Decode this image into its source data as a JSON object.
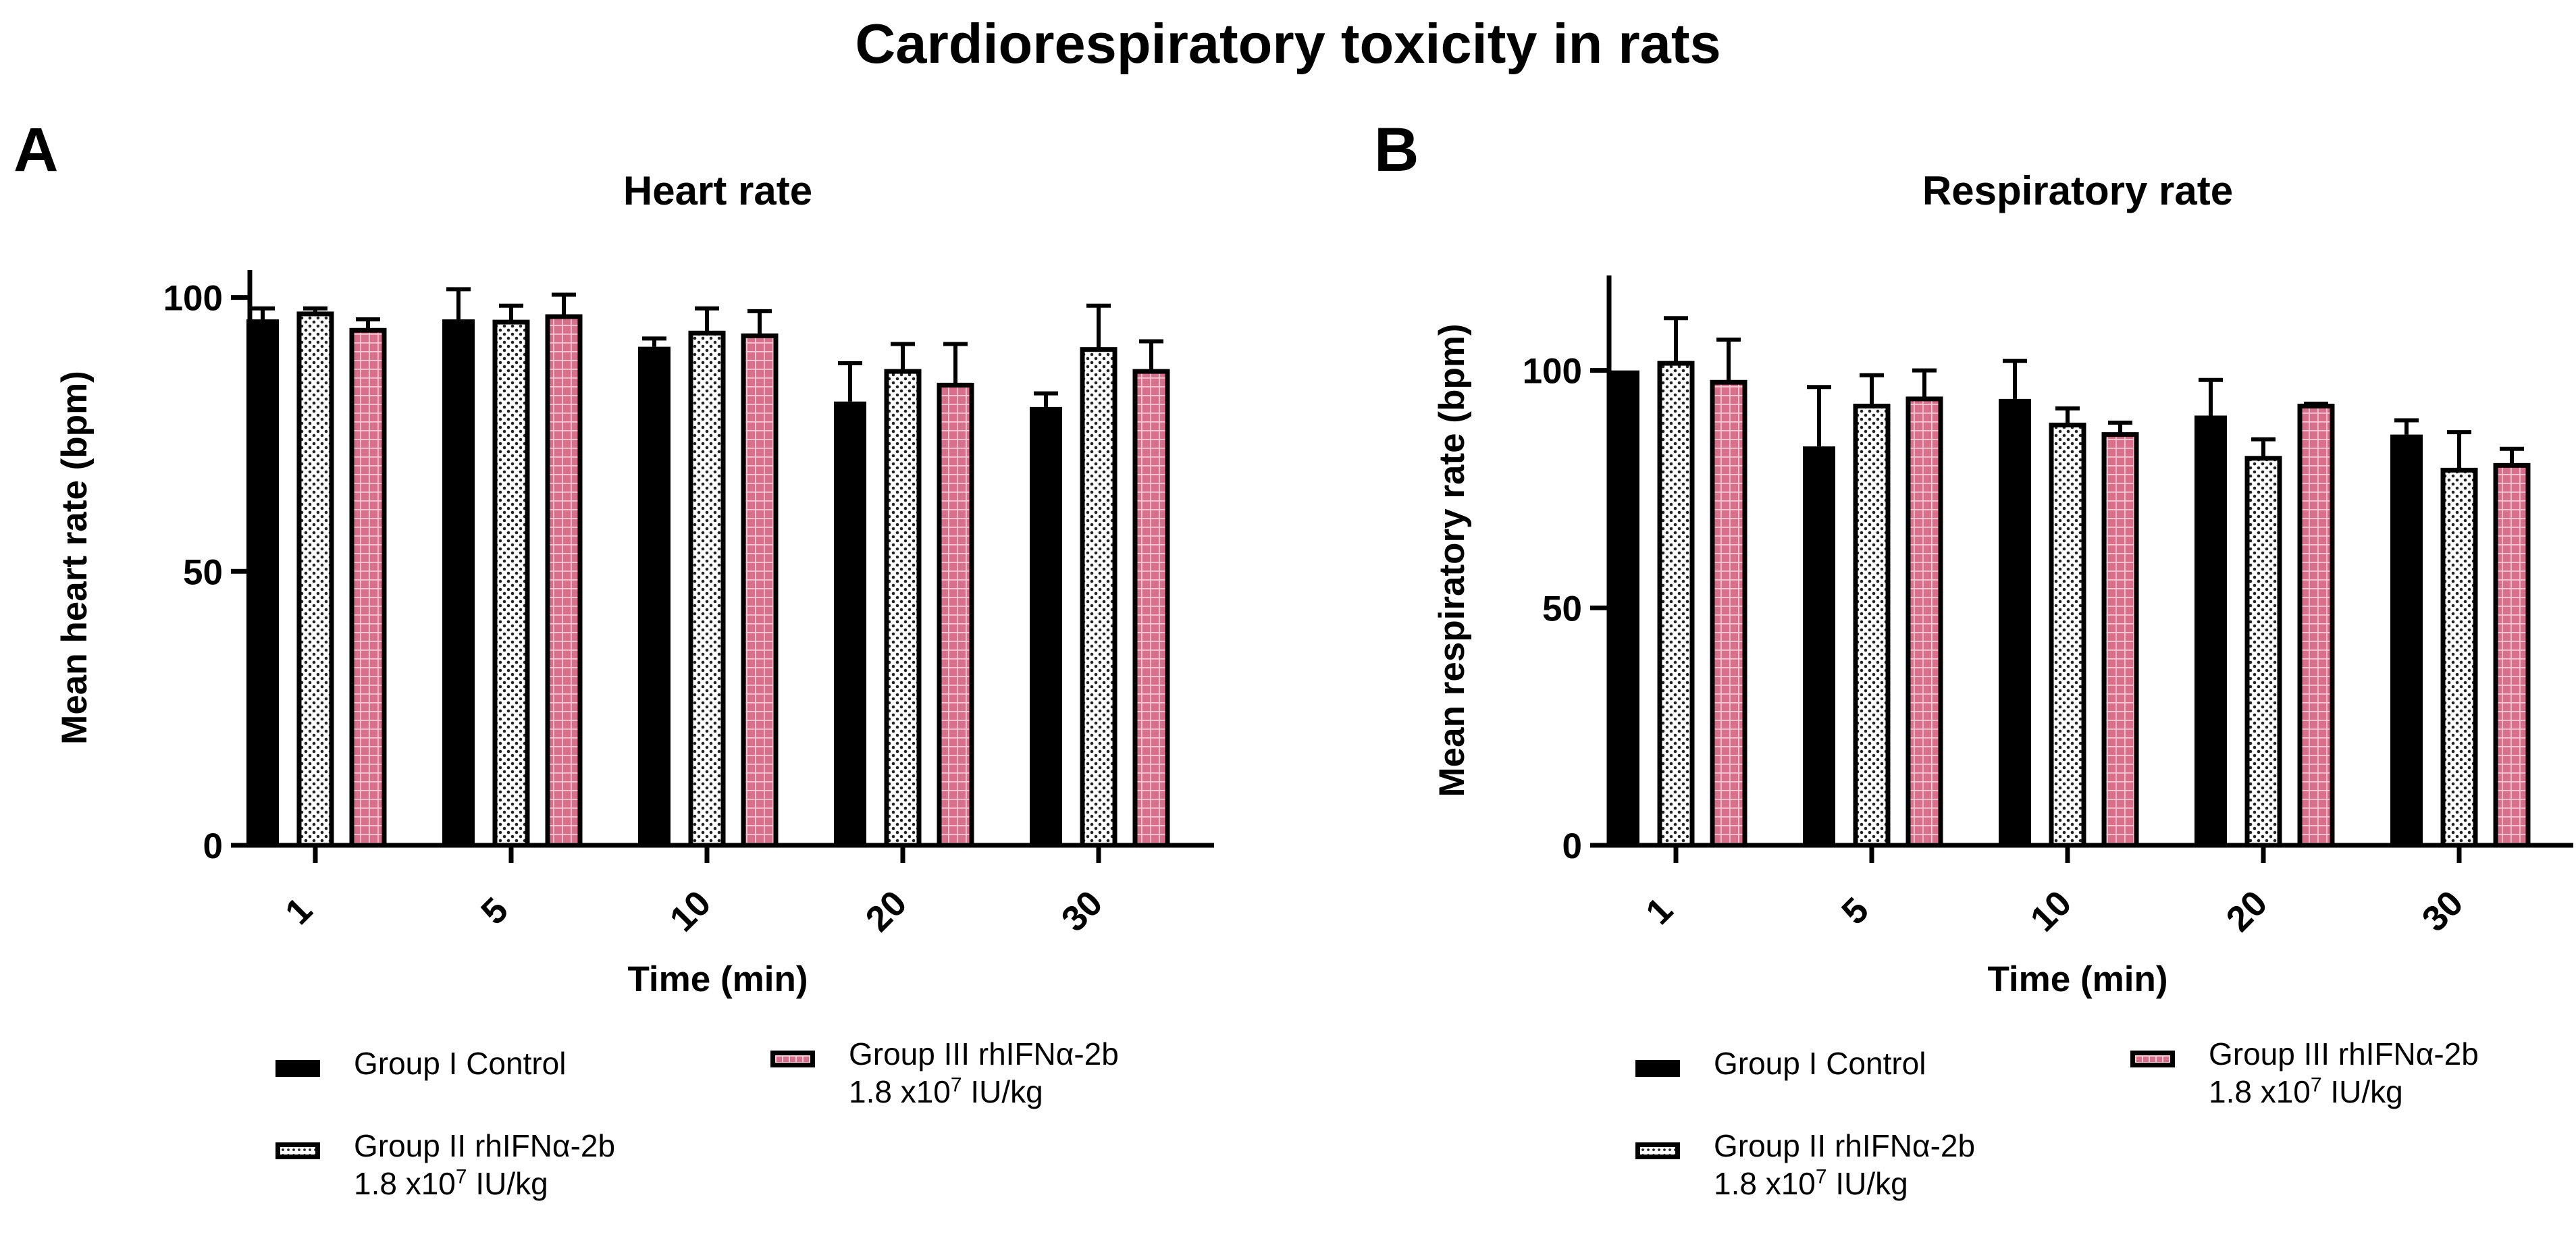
{
  "figure_title": "Cardiorespiratory toxicity in rats",
  "legend_items": [
    {
      "name": "Group I Control",
      "label": "Group I Control",
      "dose_prefix": "",
      "dose_exp": "",
      "dose_suffix": "",
      "fill": "#000000"
    },
    {
      "name": "Group II rhIFNα-2b",
      "label": "Group II rhIFNα-2b",
      "dose_prefix": "1.8 x10",
      "dose_exp": "7",
      "dose_suffix": " IU/kg",
      "fill": "#ffffff"
    },
    {
      "name": "Group III rhIFNα-2b",
      "label": "Group III rhIFNα-2b",
      "dose_prefix": "1.8 x10",
      "dose_exp": "7",
      "dose_suffix": " IU/kg",
      "fill": "#d8708c"
    }
  ],
  "chart_data": [
    {
      "panel": "A",
      "type": "bar",
      "title": "Heart  rate",
      "xlabel": "Time (min)",
      "ylabel": "Mean heart rate  (bpm)",
      "categories": [
        "1",
        "5",
        "10",
        "20",
        "30"
      ],
      "ylim": [
        0,
        105
      ],
      "yticks": [
        0,
        50,
        100
      ],
      "grid": false,
      "legend_position": "bottom",
      "series": [
        {
          "name": "Group I Control",
          "values": [
            96,
            96,
            91,
            81,
            80
          ],
          "errors": [
            2,
            5.5,
            1.5,
            7,
            2.5
          ]
        },
        {
          "name": "Group II rhIFNα-2b",
          "values": [
            97,
            95.5,
            93.5,
            86.5,
            90.5
          ],
          "errors": [
            1,
            3,
            4.5,
            5,
            8
          ]
        },
        {
          "name": "Group III rhIFNα-2b",
          "values": [
            94,
            96.5,
            93,
            84,
            86.5
          ],
          "errors": [
            2,
            4,
            4.5,
            7.5,
            5.5
          ]
        }
      ]
    },
    {
      "panel": "B",
      "type": "bar",
      "title": "Respiratory rate",
      "xlabel": "Time (min)",
      "ylabel": "Mean respiratory rate  (bpm)",
      "categories": [
        "1",
        "5",
        "10",
        "20",
        "30"
      ],
      "ylim": [
        0,
        120
      ],
      "yticks": [
        0,
        50,
        100
      ],
      "grid": false,
      "legend_position": "bottom",
      "series": [
        {
          "name": "Group I Control",
          "values": [
            100,
            84,
            94,
            90.5,
            86.5
          ],
          "errors": [
            0,
            12.5,
            8,
            7.5,
            3
          ]
        },
        {
          "name": "Group II rhIFNα-2b",
          "values": [
            101.5,
            92.5,
            88.5,
            81.5,
            79
          ],
          "errors": [
            9.5,
            6.5,
            3.5,
            4,
            8
          ]
        },
        {
          "name": "Group III rhIFNα-2b",
          "values": [
            97.5,
            94,
            86.5,
            92.5,
            80
          ],
          "errors": [
            9,
            6,
            2.5,
            0.5,
            3.5
          ]
        }
      ]
    }
  ]
}
